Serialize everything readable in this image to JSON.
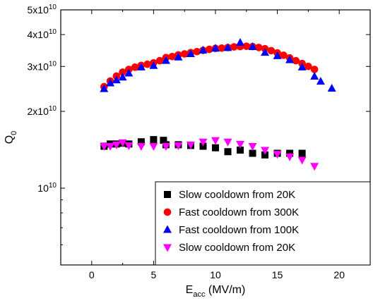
{
  "chart_data": {
    "type": "scatter",
    "xlabel": {
      "main": "E",
      "sub": "acc",
      "rest": " (MV/m)"
    },
    "ylabel": {
      "main": "Q",
      "sub": "0"
    },
    "xlim": [
      -2.5,
      22.5
    ],
    "ylim": [
      5000000000,
      50000000000
    ],
    "yscale": "log",
    "xticks": [
      0,
      5,
      10,
      15,
      20
    ],
    "yticks": [
      {
        "value": 10000000000,
        "mantissa": "",
        "base": "10",
        "exp": "10"
      },
      {
        "value": 20000000000,
        "mantissa": "2x",
        "base": "10",
        "exp": "10"
      },
      {
        "value": 30000000000,
        "mantissa": "3x",
        "base": "10",
        "exp": "10"
      },
      {
        "value": 40000000000,
        "mantissa": "4x",
        "base": "10",
        "exp": "10"
      },
      {
        "value": 50000000000,
        "mantissa": "5x",
        "base": "10",
        "exp": "10"
      }
    ],
    "legend_position": "bottom-right",
    "series": [
      {
        "name": "Slow cooldown from 20K",
        "marker": "square",
        "color": "#000000",
        "points": [
          [
            1.0,
            14600000000.0
          ],
          [
            1.5,
            14900000000.0
          ],
          [
            2.0,
            14900000000.0
          ],
          [
            2.5,
            15000000000.0
          ],
          [
            3.0,
            14900000000.0
          ],
          [
            4.0,
            15200000000.0
          ],
          [
            5.0,
            15500000000.0
          ],
          [
            5.8,
            15400000000.0
          ],
          [
            6.0,
            14800000000.0
          ],
          [
            7.0,
            14800000000.0
          ],
          [
            8.0,
            14700000000.0
          ],
          [
            9.0,
            14600000000.0
          ],
          [
            10.0,
            14400000000.0
          ],
          [
            11.0,
            13900000000.0
          ],
          [
            12.0,
            14100000000.0
          ],
          [
            13.0,
            13700000000.0
          ],
          [
            14.0,
            13500000000.0
          ],
          [
            15.0,
            13700000000.0
          ],
          [
            16.0,
            13700000000.0
          ],
          [
            17.0,
            13700000000.0
          ]
        ]
      },
      {
        "name": "Fast cooldown from 300K",
        "marker": "circle",
        "color": "#ff0000",
        "points": [
          [
            1.0,
            25000000000.0
          ],
          [
            1.5,
            26300000000.0
          ],
          [
            2.0,
            27500000000.0
          ],
          [
            2.5,
            28500000000.0
          ],
          [
            3.0,
            29200000000.0
          ],
          [
            3.5,
            29800000000.0
          ],
          [
            4.0,
            30300000000.0
          ],
          [
            4.5,
            30600000000.0
          ],
          [
            5.0,
            31000000000.0
          ],
          [
            5.5,
            31600000000.0
          ],
          [
            6.0,
            32500000000.0
          ],
          [
            6.5,
            32800000000.0
          ],
          [
            7.0,
            33300000000.0
          ],
          [
            7.5,
            33600000000.0
          ],
          [
            8.0,
            34000000000.0
          ],
          [
            8.5,
            34300000000.0
          ],
          [
            9.0,
            34700000000.0
          ],
          [
            9.5,
            35000000000.0
          ],
          [
            10.0,
            35300000000.0
          ],
          [
            10.5,
            35400000000.0
          ],
          [
            11.0,
            35600000000.0
          ],
          [
            11.5,
            35800000000.0
          ],
          [
            12.0,
            35900000000.0
          ],
          [
            12.5,
            36000000000.0
          ],
          [
            13.0,
            35900000000.0
          ],
          [
            13.5,
            35600000000.0
          ],
          [
            14.0,
            35200000000.0
          ],
          [
            14.5,
            34600000000.0
          ],
          [
            15.0,
            33900000000.0
          ],
          [
            15.5,
            33200000000.0
          ],
          [
            16.0,
            32400000000.0
          ],
          [
            16.5,
            31600000000.0
          ],
          [
            17.0,
            30800000000.0
          ],
          [
            17.5,
            30000000000.0
          ],
          [
            18.0,
            29200000000.0
          ]
        ]
      },
      {
        "name": "Fast cooldown from 100K",
        "marker": "triangle-up",
        "color": "#0000ff",
        "points": [
          [
            1.0,
            24500000000.0
          ],
          [
            1.5,
            25800000000.0
          ],
          [
            2.0,
            26500000000.0
          ],
          [
            2.5,
            27200000000.0
          ],
          [
            3.0,
            28200000000.0
          ],
          [
            4.0,
            29800000000.0
          ],
          [
            5.0,
            30200000000.0
          ],
          [
            6.0,
            31600000000.0
          ],
          [
            7.0,
            32600000000.0
          ],
          [
            8.0,
            33600000000.0
          ],
          [
            9.0,
            34700000000.0
          ],
          [
            10.0,
            35300000000.0
          ],
          [
            11.0,
            35500000000.0
          ],
          [
            12.0,
            37200000000.0
          ],
          [
            13.0,
            35800000000.0
          ],
          [
            14.0,
            34000000000.0
          ],
          [
            15.0,
            33000000000.0
          ],
          [
            16.0,
            31800000000.0
          ],
          [
            17.0,
            29800000000.0
          ],
          [
            18.0,
            27400000000.0
          ],
          [
            18.5,
            26200000000.0
          ],
          [
            19.4,
            24600000000.0
          ]
        ]
      },
      {
        "name": "Slow cooldown from 20K",
        "marker": "triangle-down",
        "color": "#ff00ff",
        "points": [
          [
            1.0,
            14600000000.0
          ],
          [
            1.5,
            14600000000.0
          ],
          [
            2.0,
            14800000000.0
          ],
          [
            2.5,
            15100000000.0
          ],
          [
            3.0,
            14700000000.0
          ],
          [
            4.0,
            14600000000.0
          ],
          [
            5.0,
            14600000000.0
          ],
          [
            6.0,
            14600000000.0
          ],
          [
            7.0,
            14700000000.0
          ],
          [
            8.0,
            14800000000.0
          ],
          [
            9.0,
            15200000000.0
          ],
          [
            10.0,
            15400000000.0
          ],
          [
            11.0,
            15200000000.0
          ],
          [
            12.0,
            14900000000.0
          ],
          [
            13.0,
            14600000000.0
          ],
          [
            14.0,
            14100000000.0
          ],
          [
            15.0,
            13600000000.0
          ],
          [
            16.0,
            13300000000.0
          ],
          [
            17.0,
            12900000000.0
          ],
          [
            18.0,
            12200000000.0
          ]
        ]
      }
    ]
  }
}
